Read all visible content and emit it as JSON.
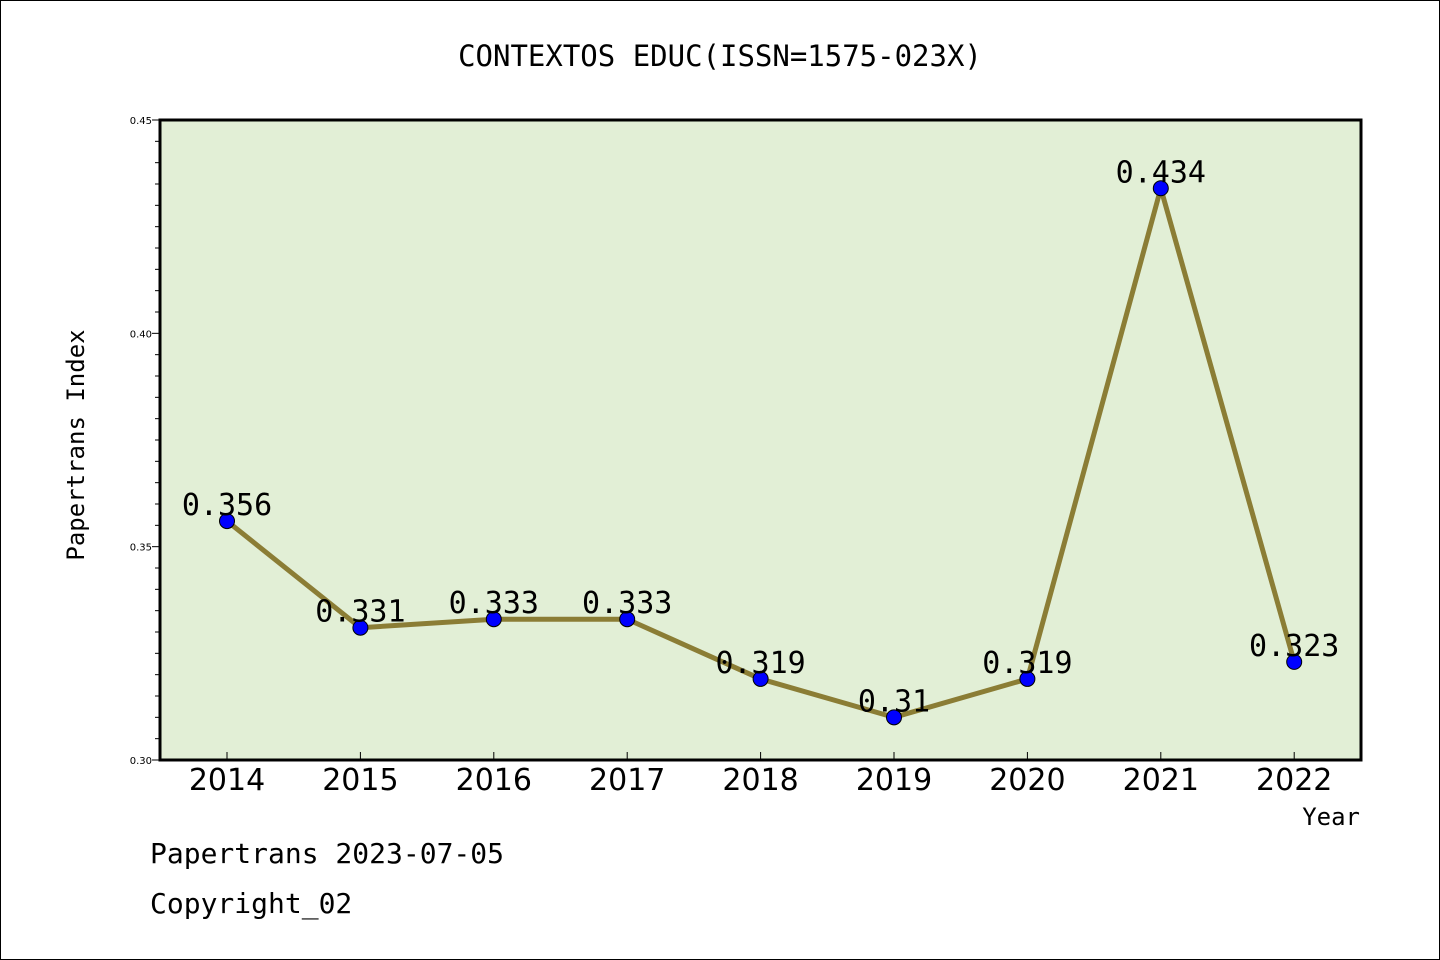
{
  "chart_data": {
    "type": "line",
    "title": "CONTEXTOS EDUC(ISSN=1575-023X)",
    "xlabel": "Year",
    "ylabel": "Papertrans Index",
    "categories": [
      "2014",
      "2015",
      "2016",
      "2017",
      "2018",
      "2019",
      "2020",
      "2021",
      "2022"
    ],
    "values": [
      0.356,
      0.331,
      0.333,
      0.333,
      0.319,
      0.31,
      0.319,
      0.434,
      0.323
    ],
    "data_labels": [
      "0.356",
      "0.331",
      "0.333",
      "0.333",
      "0.319",
      "0.31",
      "0.319",
      "0.434",
      "0.323"
    ],
    "ylim": [
      0.3,
      0.45
    ],
    "y_ticks": [
      "0.30",
      "0.35",
      "0.40",
      "0.45"
    ],
    "y_tick_values": [
      0.3,
      0.35,
      0.4,
      0.45
    ],
    "grid": false,
    "colors": {
      "plot_background": "#e2efd6",
      "line": "#8b7d35",
      "marker": "#0000ff"
    }
  },
  "footer": {
    "line1": "Papertrans 2023-07-05",
    "line2": "Copyright_02"
  }
}
